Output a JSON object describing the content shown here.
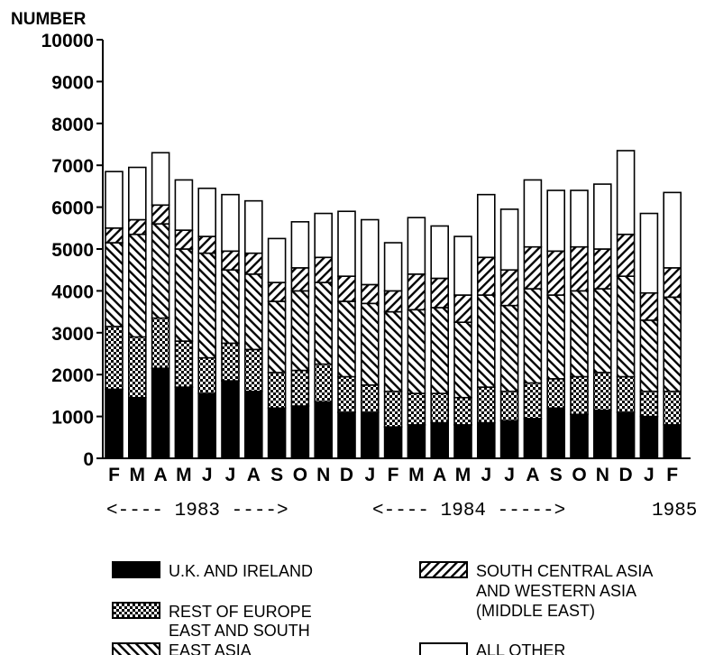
{
  "chart_data": {
    "type": "bar",
    "stacked": true,
    "ylabel": "NUMBER",
    "ylim": [
      0,
      10000
    ],
    "yticks": [
      "10000",
      "9000",
      "8000",
      "7000",
      "6000",
      "5000",
      "4000",
      "3000",
      "2000",
      "1000",
      "0"
    ],
    "categories": [
      "F",
      "M",
      "A",
      "M",
      "J",
      "J",
      "A",
      "S",
      "O",
      "N",
      "D",
      "J",
      "F",
      "M",
      "A",
      "M",
      "J",
      "J",
      "A",
      "S",
      "O",
      "N",
      "D",
      "J",
      "F"
    ],
    "year_labels": [
      "<---- 1983 ---->",
      "<---- 1984 ----->",
      "1985"
    ],
    "series": [
      {
        "name": "U.K. AND IRELAND",
        "pattern": "solid",
        "values": [
          1650,
          1450,
          2150,
          1700,
          1550,
          1850,
          1600,
          1200,
          1250,
          1350,
          1100,
          1100,
          750,
          800,
          850,
          800,
          850,
          900,
          950,
          1200,
          1050,
          1150,
          1100,
          1000,
          800
        ]
      },
      {
        "name": "REST OF EUROPE",
        "pattern": "dots",
        "values": [
          1500,
          1450,
          1200,
          1100,
          850,
          900,
          1000,
          850,
          850,
          900,
          850,
          650,
          850,
          750,
          700,
          650,
          850,
          700,
          850,
          700,
          900,
          900,
          850,
          600,
          800
        ]
      },
      {
        "name": "EAST AND SOUTH EAST ASIA",
        "pattern": "backslash",
        "values": [
          2000,
          2450,
          2250,
          2200,
          2500,
          1750,
          1800,
          1700,
          1900,
          1950,
          1800,
          1950,
          1900,
          2000,
          2050,
          1800,
          2200,
          2050,
          2250,
          2000,
          2050,
          2000,
          2400,
          1700,
          2250
        ]
      },
      {
        "name": "SOUTH CENTRAL ASIA AND WESTERN ASIA (MIDDLE EAST)",
        "pattern": "slash",
        "values": [
          350,
          350,
          450,
          450,
          400,
          450,
          500,
          450,
          550,
          600,
          600,
          450,
          500,
          850,
          700,
          650,
          900,
          850,
          1000,
          1050,
          1050,
          950,
          1000,
          650,
          700
        ]
      },
      {
        "name": "ALL OTHER",
        "pattern": "empty",
        "values": [
          1350,
          1250,
          1250,
          1200,
          1150,
          1350,
          1250,
          1050,
          1100,
          1050,
          1550,
          1550,
          1150,
          1350,
          1250,
          1400,
          1500,
          1450,
          1600,
          1450,
          1350,
          1550,
          2000,
          1900,
          1800
        ]
      }
    ],
    "legend_placement": "bottom",
    "grid": false
  }
}
